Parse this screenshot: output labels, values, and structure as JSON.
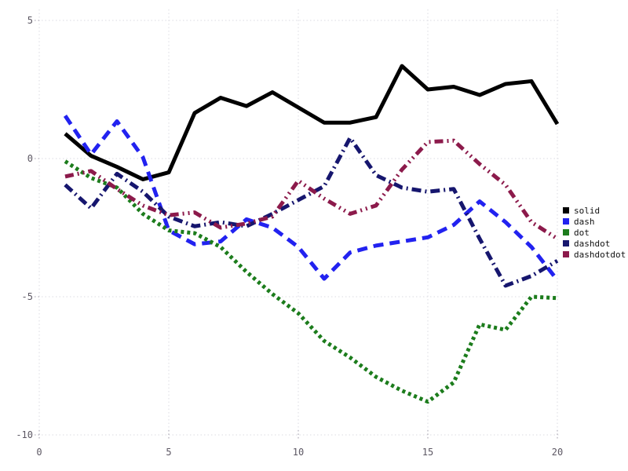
{
  "page": {
    "background": "#ffffff"
  },
  "chart_data": {
    "type": "line",
    "title": "",
    "xlabel": "",
    "ylabel": "",
    "grid": true,
    "grid_style": "dotted",
    "grid_color": "#dbdbe2",
    "tick_color": "#a29dab",
    "tick_label_color": "#5c5763",
    "xlim": [
      0,
      20
    ],
    "ylim": [
      -10,
      5
    ],
    "x_ticks": [
      0,
      5,
      10,
      15,
      20
    ],
    "y_ticks": [
      -10,
      -5,
      0,
      5
    ],
    "x_tick_labels": [
      "0",
      "5",
      "10",
      "15",
      "20"
    ],
    "y_tick_labels": [
      "-10",
      "-5",
      "0",
      "5"
    ],
    "legend_position": "right",
    "x": [
      1,
      2,
      3,
      4,
      5,
      6,
      7,
      8,
      9,
      10,
      11,
      12,
      13,
      14,
      15,
      16,
      17,
      18,
      19,
      20
    ],
    "series": [
      {
        "name": "solid",
        "line_style": "solid",
        "color": "#000000",
        "values": [
          0.9,
          0.1,
          -0.3,
          -0.75,
          -0.5,
          1.65,
          2.2,
          1.9,
          2.4,
          1.85,
          1.3,
          1.3,
          1.5,
          3.35,
          2.5,
          2.6,
          2.3,
          2.7,
          2.8,
          1.25
        ]
      },
      {
        "name": "dash",
        "line_style": "dash",
        "color": "#2222f0",
        "values": [
          1.55,
          0.15,
          1.35,
          0.05,
          -2.6,
          -3.1,
          -3.0,
          -2.2,
          -2.5,
          -3.2,
          -4.35,
          -3.4,
          -3.15,
          -3.0,
          -2.85,
          -2.4,
          -1.55,
          -2.3,
          -3.2,
          -4.4
        ]
      },
      {
        "name": "dot",
        "line_style": "dot",
        "color": "#1c7c1c",
        "values": [
          -0.1,
          -0.7,
          -1.05,
          -2.0,
          -2.6,
          -2.7,
          -3.2,
          -4.1,
          -4.9,
          -5.6,
          -6.6,
          -7.2,
          -7.9,
          -8.4,
          -8.8,
          -8.1,
          -6.0,
          -6.2,
          -5.0,
          -5.05
        ]
      },
      {
        "name": "dashdot",
        "line_style": "dashdot",
        "color": "#16166e",
        "values": [
          -0.95,
          -1.8,
          -0.55,
          -1.2,
          -2.1,
          -2.45,
          -2.3,
          -2.45,
          -2.0,
          -1.5,
          -1.0,
          0.75,
          -0.6,
          -1.05,
          -1.2,
          -1.1,
          -2.9,
          -4.6,
          -4.25,
          -3.7
        ]
      },
      {
        "name": "dashdotdot",
        "line_style": "dashdotdot",
        "color": "#8c1a4b",
        "values": [
          -0.65,
          -0.45,
          -1.1,
          -1.7,
          -2.05,
          -1.95,
          -2.5,
          -2.35,
          -2.1,
          -0.8,
          -1.45,
          -2.0,
          -1.7,
          -0.4,
          0.6,
          0.65,
          -0.2,
          -0.95,
          -2.3,
          -2.9
        ]
      }
    ],
    "legend": {
      "items": [
        "solid",
        "dash",
        "dot",
        "dashdot",
        "dashdotdot"
      ]
    }
  }
}
